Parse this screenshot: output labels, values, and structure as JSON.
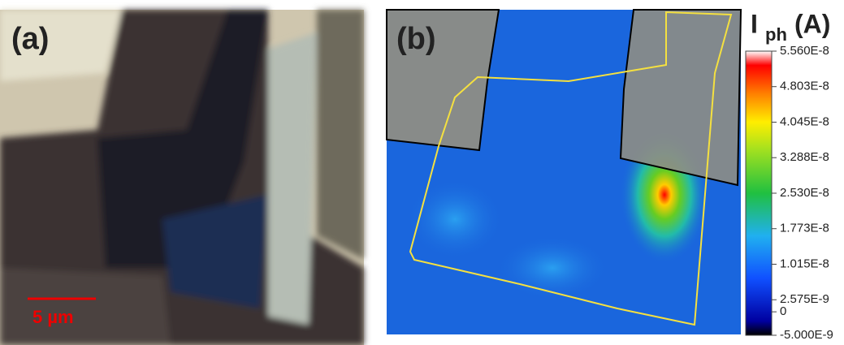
{
  "panel_a": {
    "label": "(a)",
    "scale_bar": "5 µm"
  },
  "panel_b": {
    "label": "(b)",
    "colorbar": {
      "symbol": "I",
      "subscript": "ph",
      "unit": "(A)",
      "lim": [
        -5e-09,
        5.56e-08
      ],
      "ticks": [
        {
          "value": 5.56e-08,
          "label": "5.560E-8"
        },
        {
          "value": 4.803e-08,
          "label": "4.803E-8"
        },
        {
          "value": 4.045e-08,
          "label": "4.045E-8"
        },
        {
          "value": 3.288e-08,
          "label": "3.288E-8"
        },
        {
          "value": 2.53e-08,
          "label": "2.530E-8"
        },
        {
          "value": 1.773e-08,
          "label": "1.773E-8"
        },
        {
          "value": 1.015e-08,
          "label": "1.015E-8"
        },
        {
          "value": 2.575e-09,
          "label": "2.575E-9"
        },
        0,
        {
          "value": -5e-09,
          "label": "-5.000E-9"
        }
      ]
    }
  }
}
